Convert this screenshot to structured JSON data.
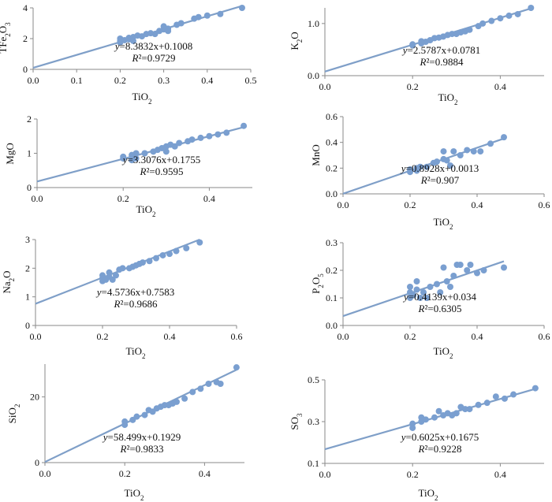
{
  "chart_data": [
    {
      "type": "scatter",
      "xlabel": "TiO",
      "xlabel_sub": "2",
      "ylabel": "TFe",
      "ylabel_sub": "2",
      "ylabel_post": "O",
      "ylabel_sub2": "3",
      "xlim": [
        0,
        0.5
      ],
      "ylim": [
        0,
        4
      ],
      "xticks": [
        0,
        0.1,
        0.2,
        0.3,
        0.4,
        0.5
      ],
      "xtick_labels": [
        "0.0",
        "0.1",
        "0.2",
        "0.3",
        "0.4",
        "0.5"
      ],
      "yticks": [
        0,
        2,
        4
      ],
      "ytick_labels": [
        "0",
        "2",
        "4"
      ],
      "fit": {
        "slope": 8.3832,
        "intercept": 0.1008
      },
      "equation": "y=8.3832x+0.1008",
      "r2": "R²=0.9729",
      "points": [
        [
          0.2,
          1.75
        ],
        [
          0.2,
          1.85
        ],
        [
          0.2,
          2.0
        ],
        [
          0.21,
          1.9
        ],
        [
          0.22,
          1.95
        ],
        [
          0.22,
          2.05
        ],
        [
          0.23,
          2.1
        ],
        [
          0.23,
          1.85
        ],
        [
          0.24,
          2.2
        ],
        [
          0.25,
          2.15
        ],
        [
          0.26,
          2.3
        ],
        [
          0.27,
          2.35
        ],
        [
          0.28,
          2.3
        ],
        [
          0.29,
          2.5
        ],
        [
          0.3,
          2.6
        ],
        [
          0.3,
          2.8
        ],
        [
          0.31,
          2.5
        ],
        [
          0.31,
          2.65
        ],
        [
          0.33,
          2.9
        ],
        [
          0.34,
          3.0
        ],
        [
          0.37,
          3.3
        ],
        [
          0.38,
          3.4
        ],
        [
          0.4,
          3.5
        ],
        [
          0.43,
          3.6
        ],
        [
          0.48,
          4.0
        ]
      ]
    },
    {
      "type": "scatter",
      "xlabel": "TiO",
      "xlabel_sub": "2",
      "ylabel": "K",
      "ylabel_sub": "2",
      "ylabel_post": "O",
      "ylabel_sub2": "",
      "xlim": [
        0,
        0.5
      ],
      "ylim": [
        0,
        1.3
      ],
      "xticks": [
        0,
        0.2,
        0.4
      ],
      "xtick_labels": [
        "0.0",
        "0.2",
        "0.4"
      ],
      "yticks": [
        0,
        1
      ],
      "ytick_labels": [
        "0.0",
        "1.0"
      ],
      "fit": {
        "slope": 2.5787,
        "intercept": 0.0781
      },
      "equation": "y=2.5787x+0.0781",
      "r2": "R²=0.9884",
      "points": [
        [
          0.2,
          0.6
        ],
        [
          0.2,
          0.58
        ],
        [
          0.22,
          0.62
        ],
        [
          0.22,
          0.66
        ],
        [
          0.23,
          0.65
        ],
        [
          0.24,
          0.68
        ],
        [
          0.25,
          0.72
        ],
        [
          0.26,
          0.73
        ],
        [
          0.27,
          0.75
        ],
        [
          0.28,
          0.78
        ],
        [
          0.29,
          0.8
        ],
        [
          0.3,
          0.8
        ],
        [
          0.31,
          0.83
        ],
        [
          0.32,
          0.85
        ],
        [
          0.33,
          0.88
        ],
        [
          0.35,
          0.95
        ],
        [
          0.36,
          1.0
        ],
        [
          0.38,
          1.05
        ],
        [
          0.4,
          1.1
        ],
        [
          0.42,
          1.15
        ],
        [
          0.44,
          1.18
        ],
        [
          0.47,
          1.3
        ]
      ]
    },
    {
      "type": "scatter",
      "xlabel": "TiO",
      "xlabel_sub": "2",
      "ylabel": "MgO",
      "ylabel_sub": "",
      "ylabel_post": "",
      "ylabel_sub2": "",
      "xlim": [
        0,
        0.5
      ],
      "ylim": [
        0,
        2
      ],
      "xticks": [
        0,
        0.2,
        0.4
      ],
      "xtick_labels": [
        "0.0",
        "0.2",
        "0.4"
      ],
      "yticks": [
        0,
        1,
        2
      ],
      "ytick_labels": [
        "0",
        "1",
        "2"
      ],
      "fit": {
        "slope": 3.3076,
        "intercept": 0.1755
      },
      "equation": "y=3.3076x+0.1755",
      "r2": "R²=0.9595",
      "points": [
        [
          0.2,
          0.85
        ],
        [
          0.2,
          0.9
        ],
        [
          0.22,
          0.8
        ],
        [
          0.22,
          0.95
        ],
        [
          0.23,
          0.85
        ],
        [
          0.23,
          1.0
        ],
        [
          0.25,
          1.0
        ],
        [
          0.27,
          1.05
        ],
        [
          0.28,
          1.1
        ],
        [
          0.29,
          1.15
        ],
        [
          0.3,
          1.05
        ],
        [
          0.3,
          1.2
        ],
        [
          0.31,
          1.25
        ],
        [
          0.32,
          1.2
        ],
        [
          0.33,
          1.3
        ],
        [
          0.35,
          1.35
        ],
        [
          0.36,
          1.4
        ],
        [
          0.38,
          1.45
        ],
        [
          0.4,
          1.5
        ],
        [
          0.42,
          1.55
        ],
        [
          0.44,
          1.6
        ],
        [
          0.48,
          1.8
        ]
      ]
    },
    {
      "type": "scatter",
      "xlabel": "TiO",
      "xlabel_sub": "2",
      "ylabel": "MnO",
      "ylabel_sub": "",
      "ylabel_post": "",
      "ylabel_sub2": "",
      "xlim": [
        0,
        0.6
      ],
      "ylim": [
        0,
        0.6
      ],
      "xticks": [
        0,
        0.2,
        0.4,
        0.6
      ],
      "xtick_labels": [
        "0.0",
        "0.2",
        "0.4",
        "0.6"
      ],
      "yticks": [
        0,
        0.2,
        0.4,
        0.6
      ],
      "ytick_labels": [
        "0.0",
        "0.2",
        "0.4",
        "0.6"
      ],
      "fit": {
        "slope": 0.8928,
        "intercept": 0.0013
      },
      "equation": "y=0.8928x+0.0013",
      "r2": "R²=0.907",
      "points": [
        [
          0.2,
          0.17
        ],
        [
          0.2,
          0.19
        ],
        [
          0.22,
          0.2
        ],
        [
          0.22,
          0.18
        ],
        [
          0.23,
          0.21
        ],
        [
          0.25,
          0.21
        ],
        [
          0.27,
          0.24
        ],
        [
          0.28,
          0.25
        ],
        [
          0.3,
          0.27
        ],
        [
          0.3,
          0.33
        ],
        [
          0.31,
          0.26
        ],
        [
          0.32,
          0.22
        ],
        [
          0.33,
          0.33
        ],
        [
          0.35,
          0.3
        ],
        [
          0.37,
          0.34
        ],
        [
          0.39,
          0.33
        ],
        [
          0.41,
          0.33
        ],
        [
          0.44,
          0.39
        ],
        [
          0.48,
          0.44
        ]
      ]
    },
    {
      "type": "scatter",
      "xlabel": "TiO",
      "xlabel_sub": "2",
      "ylabel": "Na",
      "ylabel_sub": "2",
      "ylabel_post": "O",
      "ylabel_sub2": "",
      "xlim": [
        0,
        0.6
      ],
      "ylim": [
        0,
        3
      ],
      "xticks": [
        0,
        0.2,
        0.4,
        0.6
      ],
      "xtick_labels": [
        "0.0",
        "0.2",
        "0.4",
        "0.6"
      ],
      "yticks": [
        0,
        1,
        2,
        3
      ],
      "ytick_labels": [
        "0",
        "1",
        "2",
        "3"
      ],
      "fit": {
        "slope": 4.5736,
        "intercept": 0.7583
      },
      "equation": "y=4.5736x+0.7583",
      "r2": "R²=0.9686",
      "points": [
        [
          0.2,
          1.55
        ],
        [
          0.2,
          1.65
        ],
        [
          0.2,
          1.75
        ],
        [
          0.21,
          1.6
        ],
        [
          0.22,
          1.7
        ],
        [
          0.22,
          1.85
        ],
        [
          0.23,
          1.6
        ],
        [
          0.24,
          1.75
        ],
        [
          0.25,
          1.95
        ],
        [
          0.26,
          2.0
        ],
        [
          0.28,
          2.0
        ],
        [
          0.29,
          2.05
        ],
        [
          0.3,
          2.1
        ],
        [
          0.31,
          2.15
        ],
        [
          0.32,
          2.2
        ],
        [
          0.34,
          2.25
        ],
        [
          0.36,
          2.35
        ],
        [
          0.38,
          2.45
        ],
        [
          0.4,
          2.5
        ],
        [
          0.42,
          2.6
        ],
        [
          0.45,
          2.7
        ],
        [
          0.49,
          2.9
        ]
      ]
    },
    {
      "type": "scatter",
      "xlabel": "TiO",
      "xlabel_sub": "2",
      "ylabel": "P",
      "ylabel_sub": "2",
      "ylabel_post": "O",
      "ylabel_sub2": "5",
      "xlim": [
        0,
        0.6
      ],
      "ylim": [
        0,
        0.3
      ],
      "xticks": [
        0,
        0.2,
        0.4,
        0.6
      ],
      "xtick_labels": [
        "0.0",
        "0.2",
        "0.4",
        "0.6"
      ],
      "yticks": [
        0,
        0.1,
        0.2,
        0.3
      ],
      "ytick_labels": [
        "0.0",
        "0.1",
        "0.2",
        "0.3"
      ],
      "fit": {
        "slope": 0.4139,
        "intercept": 0.034
      },
      "equation": "y=0.4139x+0.034",
      "r2": "R²=0.6305",
      "points": [
        [
          0.2,
          0.1
        ],
        [
          0.2,
          0.12
        ],
        [
          0.2,
          0.14
        ],
        [
          0.21,
          0.11
        ],
        [
          0.22,
          0.13
        ],
        [
          0.22,
          0.16
        ],
        [
          0.23,
          0.1
        ],
        [
          0.24,
          0.12
        ],
        [
          0.25,
          0.1
        ],
        [
          0.26,
          0.14
        ],
        [
          0.28,
          0.15
        ],
        [
          0.29,
          0.12
        ],
        [
          0.3,
          0.21
        ],
        [
          0.31,
          0.16
        ],
        [
          0.32,
          0.14
        ],
        [
          0.33,
          0.18
        ],
        [
          0.34,
          0.22
        ],
        [
          0.35,
          0.22
        ],
        [
          0.37,
          0.2
        ],
        [
          0.38,
          0.22
        ],
        [
          0.4,
          0.19
        ],
        [
          0.42,
          0.2
        ],
        [
          0.48,
          0.21
        ]
      ]
    },
    {
      "type": "scatter",
      "xlabel": "TiO",
      "xlabel_sub": "2",
      "ylabel": "SiO",
      "ylabel_sub": "2",
      "ylabel_post": "",
      "ylabel_sub2": "",
      "xlim": [
        0,
        0.5
      ],
      "ylim": [
        0,
        30
      ],
      "xticks": [
        0,
        0.2,
        0.4
      ],
      "xtick_labels": [
        "0.0",
        "0.2",
        "0.4"
      ],
      "yticks": [
        0,
        20
      ],
      "ytick_labels": [
        "0",
        "20"
      ],
      "fit": {
        "slope": 58.499,
        "intercept": 0.1929
      },
      "equation": "y=58.499x+0.1929",
      "r2": "R²=0.9833",
      "points": [
        [
          0.2,
          11.5
        ],
        [
          0.2,
          12.5
        ],
        [
          0.22,
          13
        ],
        [
          0.23,
          14
        ],
        [
          0.25,
          14.5
        ],
        [
          0.26,
          16
        ],
        [
          0.27,
          15.5
        ],
        [
          0.28,
          16.5
        ],
        [
          0.29,
          17
        ],
        [
          0.3,
          17.5
        ],
        [
          0.31,
          17.5
        ],
        [
          0.32,
          18
        ],
        [
          0.33,
          18.5
        ],
        [
          0.35,
          19.5
        ],
        [
          0.37,
          21.5
        ],
        [
          0.39,
          22.5
        ],
        [
          0.41,
          24
        ],
        [
          0.43,
          24.5
        ],
        [
          0.44,
          24
        ],
        [
          0.48,
          29
        ]
      ]
    },
    {
      "type": "scatter",
      "xlabel": "TiO",
      "xlabel_sub": "2",
      "ylabel": "SO",
      "ylabel_sub": "3",
      "ylabel_post": "",
      "ylabel_sub2": "",
      "xlim": [
        0,
        0.5
      ],
      "ylim": [
        0.1,
        0.5
      ],
      "xticks": [
        0,
        0.2,
        0.4
      ],
      "xtick_labels": [
        "0.0",
        "0.2",
        "0.4"
      ],
      "yticks": [
        0.1,
        0.3,
        0.5
      ],
      "ytick_labels": [
        "0.1",
        "0.3",
        "0.5"
      ],
      "fit": {
        "slope": 0.6025,
        "intercept": 0.1675
      },
      "equation": "y=0.6025x+0.1675",
      "r2": "R²=0.9228",
      "points": [
        [
          0.2,
          0.27
        ],
        [
          0.2,
          0.29
        ],
        [
          0.22,
          0.3
        ],
        [
          0.22,
          0.32
        ],
        [
          0.23,
          0.31
        ],
        [
          0.25,
          0.32
        ],
        [
          0.26,
          0.35
        ],
        [
          0.27,
          0.33
        ],
        [
          0.28,
          0.34
        ],
        [
          0.29,
          0.33
        ],
        [
          0.3,
          0.34
        ],
        [
          0.31,
          0.37
        ],
        [
          0.32,
          0.36
        ],
        [
          0.33,
          0.36
        ],
        [
          0.35,
          0.38
        ],
        [
          0.37,
          0.39
        ],
        [
          0.39,
          0.42
        ],
        [
          0.41,
          0.41
        ],
        [
          0.43,
          0.43
        ],
        [
          0.48,
          0.46
        ]
      ]
    }
  ],
  "colors": {
    "marker": "#7a9fd0",
    "line": "#7f9fc8",
    "axis": "#8a8a8a",
    "text": "#111111"
  }
}
